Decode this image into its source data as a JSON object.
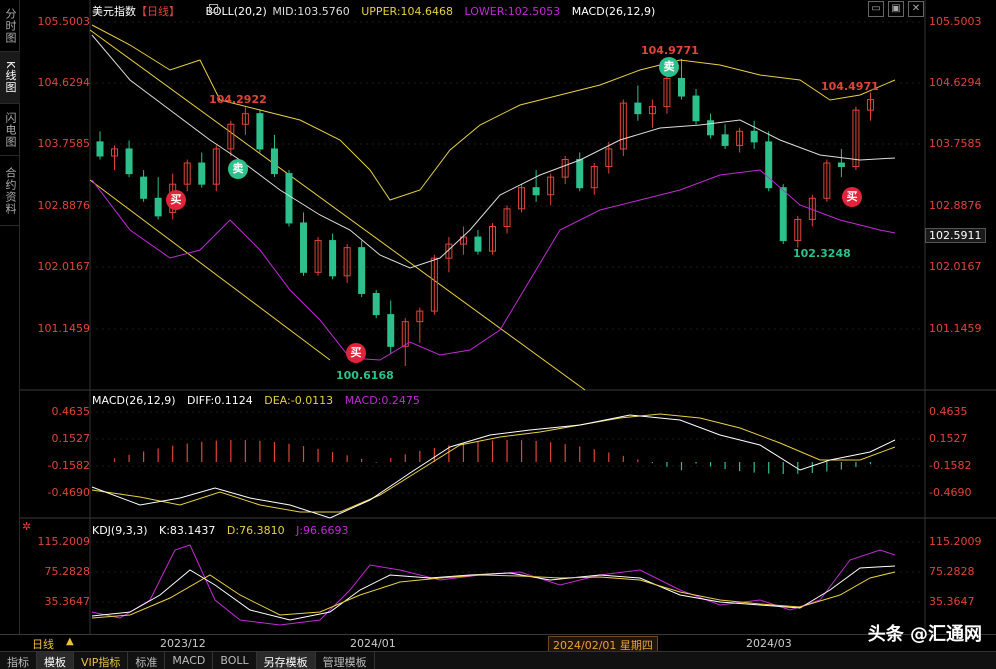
{
  "sidebar": {
    "items": [
      {
        "label": "分时图"
      },
      {
        "label": "K线图"
      },
      {
        "label": "闪电图"
      },
      {
        "label": "合约资料"
      }
    ]
  },
  "header": {
    "main": {
      "symbol": "美元指数",
      "period": "【日线】",
      "boll": "BOLL(20,2)",
      "mid": "MID:103.5760",
      "upper": "UPPER:104.6468",
      "lower": "LOWER:102.5053",
      "macd": "MACD(26,12,9)"
    },
    "macd": {
      "name": "MACD(26,12,9)",
      "diff": "DIFF:0.1124",
      "dea": "DEA:-0.0113",
      "macd": "MACD:0.2475"
    },
    "kdj": {
      "name": "KDJ(9,3,3)",
      "k": "K:83.1437",
      "d": "D:76.3810",
      "j": "J:96.6693"
    }
  },
  "axis": {
    "price": [
      "105.5003",
      "104.6294",
      "103.7585",
      "102.8876",
      "102.0167",
      "101.1459"
    ],
    "current_price": "102.5911",
    "macd": [
      "0.4635",
      "0.1527",
      "-0.1582",
      "-0.4690"
    ],
    "kdj": [
      "115.2009",
      "75.2828",
      "35.3647"
    ]
  },
  "annotations": {
    "high1": "104.2922",
    "high2": "104.9771",
    "high3": "104.4971",
    "low1": "100.6168",
    "low2": "102.3248",
    "buy": "买",
    "sell": "卖"
  },
  "date_axis": {
    "period": "日线",
    "labels": [
      "2023/12",
      "2024/01",
      "2024/03"
    ],
    "crosshair": "2024/02/01 星期四"
  },
  "bottom_tabs": [
    {
      "label": "指标"
    },
    {
      "label": "模板"
    },
    {
      "label": "VIP指标"
    },
    {
      "label": "标准"
    },
    {
      "label": "MACD"
    },
    {
      "label": "BOLL"
    },
    {
      "label": "另存模板"
    },
    {
      "label": "管理模板"
    }
  ],
  "watermark": "头条 @汇通网",
  "colors": {
    "up": "#e0453a",
    "down": "#2dc08d",
    "mid": "#dddddd",
    "upper": "#e8d044",
    "lower": "#c22bd6",
    "dea": "#e8d044",
    "diff": "#ffffff",
    "axis_text": "#e0453a"
  }
}
